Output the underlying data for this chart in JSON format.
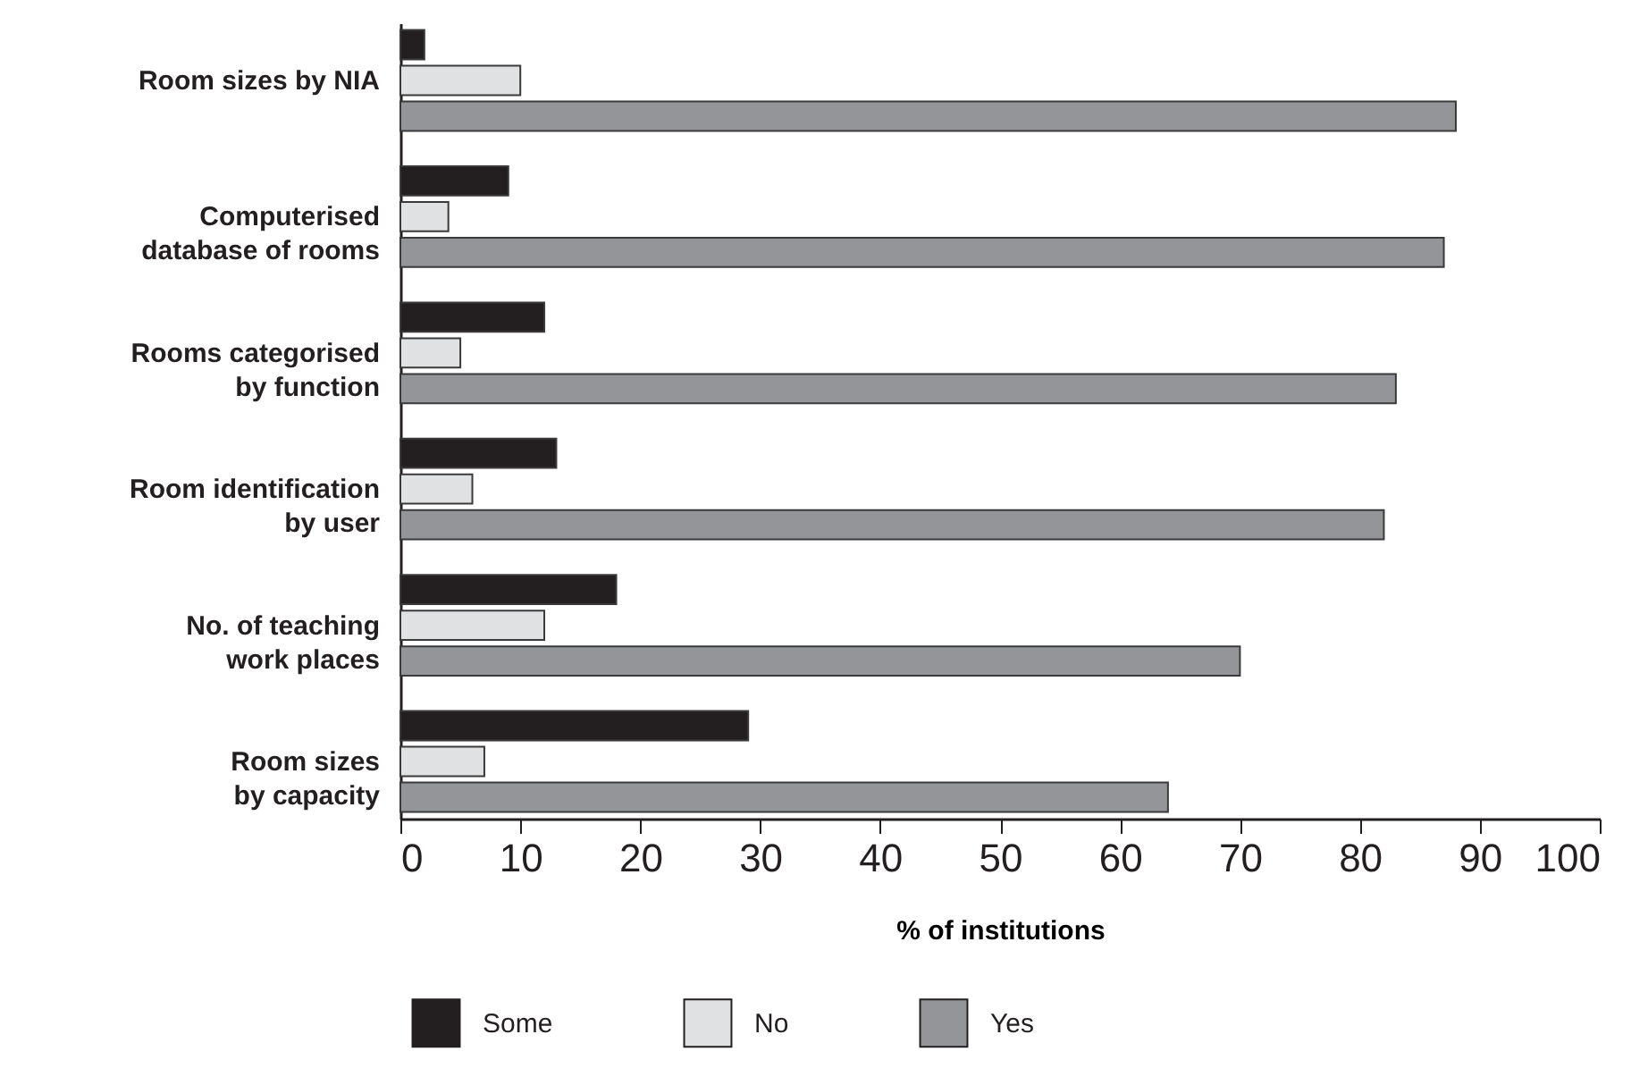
{
  "chart_data": {
    "type": "bar",
    "orientation": "horizontal",
    "xlabel": "% of institutions",
    "categories": [
      "Room sizes by NIA",
      "Computerised \ndatabase of rooms",
      "Rooms categorised\nby function",
      "Room identification\nby user",
      "No. of teaching\nwork places",
      "Room sizes\nby capacity"
    ],
    "series": [
      {
        "name": "Some",
        "color": "#231f20",
        "values": [
          2,
          9,
          12,
          13,
          18,
          29
        ]
      },
      {
        "name": "No",
        "color": "#e0e1e3",
        "values": [
          10,
          4,
          5,
          6,
          12,
          7
        ]
      },
      {
        "name": "Yes",
        "color": "#939598",
        "values": [
          88,
          87,
          83,
          82,
          70,
          64
        ]
      }
    ],
    "xlim": [
      0,
      100
    ],
    "xticks": [
      0,
      10,
      20,
      30,
      40,
      50,
      60,
      70,
      80,
      90,
      100
    ],
    "grid": false,
    "legend": "bottom"
  }
}
